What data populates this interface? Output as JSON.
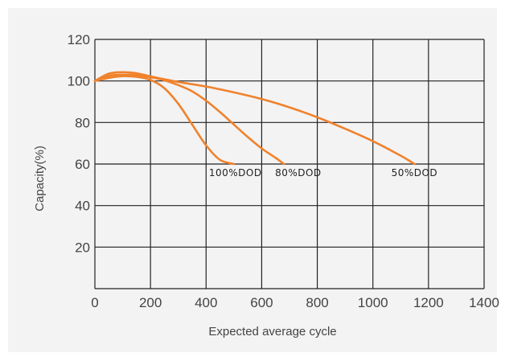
{
  "chart_data": {
    "type": "line",
    "title": "",
    "xlabel": "Expected average cycle",
    "ylabel": "Capacity(%)",
    "xlim": [
      0,
      1400
    ],
    "ylim": [
      0,
      120
    ],
    "x_ticks": [
      "0",
      "200",
      "400",
      "600",
      "800",
      "1000",
      "1200",
      "1400"
    ],
    "y_ticks": [
      "20",
      "40",
      "60",
      "80",
      "100",
      "120"
    ],
    "grid": true,
    "background_color": "#f3f3f4",
    "line_color": "#f0822c",
    "series": [
      {
        "name": "100%DOD",
        "points": [
          [
            0,
            100
          ],
          [
            50,
            101.5
          ],
          [
            100,
            102.3
          ],
          [
            150,
            102
          ],
          [
            200,
            100.5
          ],
          [
            250,
            96.5
          ],
          [
            300,
            89
          ],
          [
            350,
            79
          ],
          [
            400,
            69
          ],
          [
            450,
            62
          ],
          [
            500,
            60
          ]
        ]
      },
      {
        "name": "80%DOD",
        "points": [
          [
            0,
            100
          ],
          [
            50,
            102.5
          ],
          [
            100,
            103
          ],
          [
            150,
            102.8
          ],
          [
            200,
            101.8
          ],
          [
            250,
            100.3
          ],
          [
            300,
            98
          ],
          [
            350,
            95
          ],
          [
            400,
            90.5
          ],
          [
            450,
            85
          ],
          [
            500,
            79
          ],
          [
            550,
            73
          ],
          [
            600,
            67.5
          ],
          [
            650,
            63
          ],
          [
            680,
            60
          ]
        ]
      },
      {
        "name": "50%DOD",
        "points": [
          [
            0,
            100
          ],
          [
            50,
            103.5
          ],
          [
            100,
            104.2
          ],
          [
            150,
            103.7
          ],
          [
            200,
            102.2
          ],
          [
            300,
            99.5
          ],
          [
            400,
            97.3
          ],
          [
            500,
            94.5
          ],
          [
            600,
            91.3
          ],
          [
            700,
            87.3
          ],
          [
            800,
            82.5
          ],
          [
            900,
            77
          ],
          [
            1000,
            71
          ],
          [
            1100,
            64
          ],
          [
            1150,
            60
          ]
        ]
      }
    ]
  }
}
